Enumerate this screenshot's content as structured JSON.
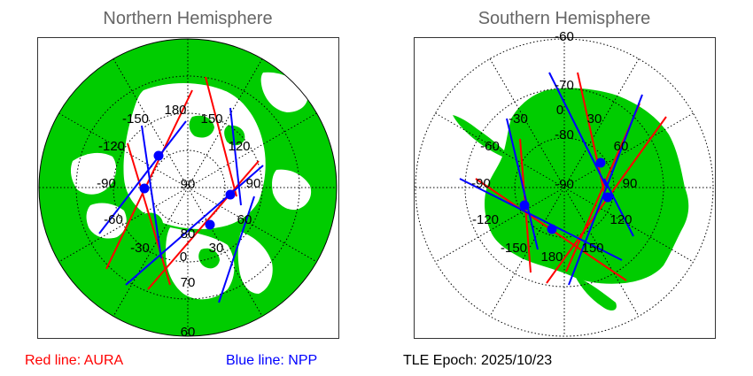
{
  "north": {
    "title": "Northern Hemisphere",
    "lon_labels": [
      "180",
      "150",
      "120",
      "90",
      "60",
      "30",
      "0",
      "-30",
      "-60",
      "-90",
      "-120",
      "-150"
    ],
    "lat_labels": [
      "90",
      "80",
      "70",
      "60"
    ]
  },
  "south": {
    "title": "Southern Hemisphere",
    "lon_labels": [
      "0",
      "30",
      "60",
      "90",
      "120",
      "150",
      "180",
      "-150",
      "-120",
      "-90",
      "-60",
      "-30"
    ],
    "lat_labels": [
      "-90",
      "-80",
      "-70",
      "-60"
    ]
  },
  "legend": {
    "aura": "Red line: AURA",
    "npp": "Blue line: NPP",
    "tle": "TLE Epoch: 2025/10/23"
  },
  "colors": {
    "land": "#00cc00",
    "ocean": "#ffffff",
    "aura": "#ff0000",
    "npp": "#0000ff",
    "grid": "#000000"
  }
}
